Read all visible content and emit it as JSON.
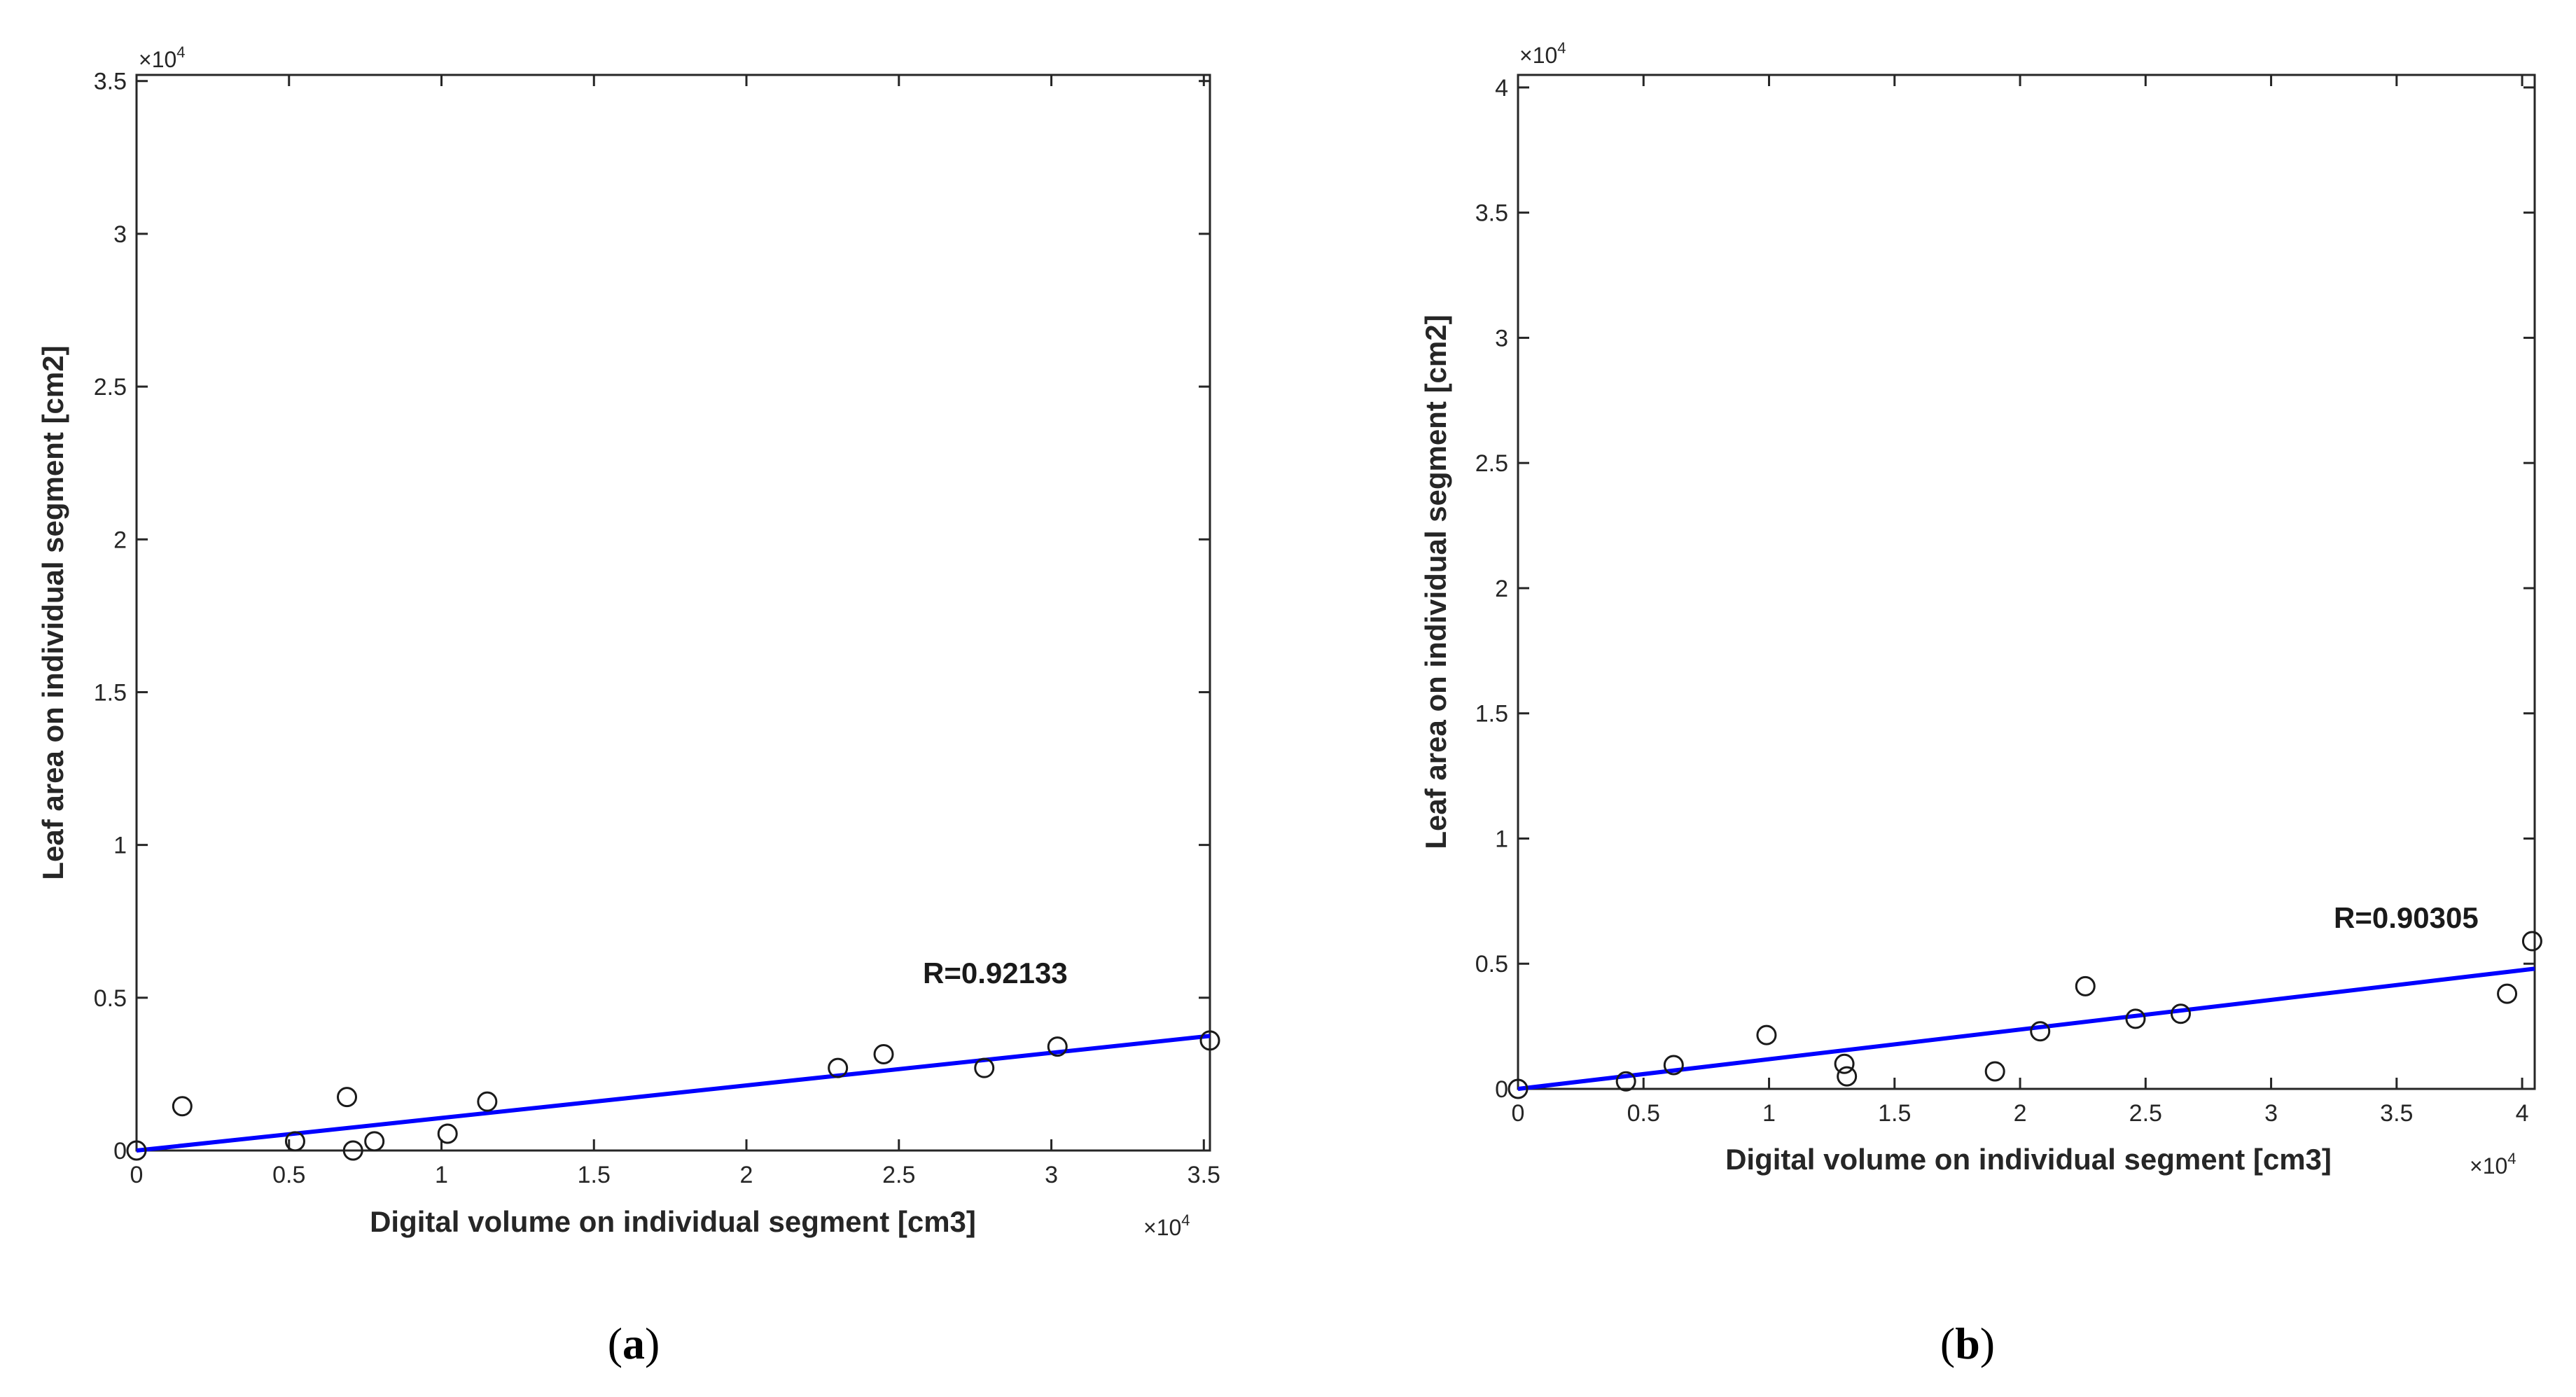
{
  "chart_data": [
    {
      "type": "scatter",
      "panel_label": "a",
      "xlabel": "Digital volume on individual segment [cm3]",
      "ylabel": "Leaf area on individual segment [cm2]",
      "x_exponent_label": "×10",
      "y_exponent_label": "×10",
      "exponent_power": "4",
      "xlim": [
        0,
        35200
      ],
      "ylim": [
        0,
        35200
      ],
      "xticks": [
        0,
        5000,
        10000,
        15000,
        20000,
        25000,
        30000,
        35000
      ],
      "xtick_labels": [
        "0",
        "0.5",
        "1",
        "1.5",
        "2",
        "2.5",
        "3",
        "3.5"
      ],
      "yticks": [
        0,
        5000,
        10000,
        15000,
        20000,
        25000,
        30000,
        35000
      ],
      "ytick_labels": [
        "0",
        "0.5",
        "1",
        "1.5",
        "2",
        "2.5",
        "3",
        "3.5"
      ],
      "annotation": "R=0.92133",
      "annotation_position": "above the right end of the fit line",
      "points": [
        {
          "x": 0,
          "y": 0
        },
        {
          "x": 1500,
          "y": 1450
        },
        {
          "x": 5200,
          "y": 300
        },
        {
          "x": 6900,
          "y": 1750
        },
        {
          "x": 7100,
          "y": 0
        },
        {
          "x": 7800,
          "y": 300
        },
        {
          "x": 10200,
          "y": 550
        },
        {
          "x": 11500,
          "y": 1600
        },
        {
          "x": 23000,
          "y": 2700
        },
        {
          "x": 24500,
          "y": 3150
        },
        {
          "x": 27800,
          "y": 2700
        },
        {
          "x": 30200,
          "y": 3400
        },
        {
          "x": 35200,
          "y": 3600
        }
      ],
      "fit_line": {
        "x": [
          0,
          35200
        ],
        "y": [
          0,
          3750
        ],
        "color": "#0000ff"
      }
    },
    {
      "type": "scatter",
      "panel_label": "b",
      "xlabel": "Digital volume on individual segment [cm3]",
      "ylabel": "Leaf area on individual segment [cm2]",
      "x_exponent_label": "×10",
      "y_exponent_label": "×10",
      "exponent_power": "4",
      "xlim": [
        0,
        40500
      ],
      "ylim": [
        0,
        40500
      ],
      "xticks": [
        0,
        5000,
        10000,
        15000,
        20000,
        25000,
        30000,
        35000,
        40000
      ],
      "xtick_labels": [
        "0",
        "0.5",
        "1",
        "1.5",
        "2",
        "2.5",
        "3",
        "3.5",
        "4"
      ],
      "yticks": [
        0,
        5000,
        10000,
        15000,
        20000,
        25000,
        30000,
        35000,
        40000
      ],
      "ytick_labels": [
        "0",
        "0.5",
        "1",
        "1.5",
        "2",
        "2.5",
        "3",
        "3.5",
        "4"
      ],
      "annotation": "R=0.90305",
      "annotation_position": "above the right end of the fit line",
      "points": [
        {
          "x": 0,
          "y": 0
        },
        {
          "x": 4300,
          "y": 300
        },
        {
          "x": 6200,
          "y": 950
        },
        {
          "x": 9900,
          "y": 2150
        },
        {
          "x": 13000,
          "y": 1000
        },
        {
          "x": 13100,
          "y": 500
        },
        {
          "x": 19000,
          "y": 700
        },
        {
          "x": 20800,
          "y": 2300
        },
        {
          "x": 22600,
          "y": 4100
        },
        {
          "x": 24600,
          "y": 2800
        },
        {
          "x": 26400,
          "y": 3000
        },
        {
          "x": 39400,
          "y": 3800
        },
        {
          "x": 40400,
          "y": 5900
        }
      ],
      "fit_line": {
        "x": [
          0,
          40500
        ],
        "y": [
          0,
          4800
        ],
        "color": "#0000ff"
      }
    }
  ],
  "captions": {
    "a": {
      "open": "(",
      "letter": "a",
      "close": ")"
    },
    "b": {
      "open": "(",
      "letter": "b",
      "close": ")"
    }
  },
  "style": {
    "marker_color": "#1a1a1a",
    "axis_color": "#262626",
    "fit_color": "#0000ff"
  }
}
